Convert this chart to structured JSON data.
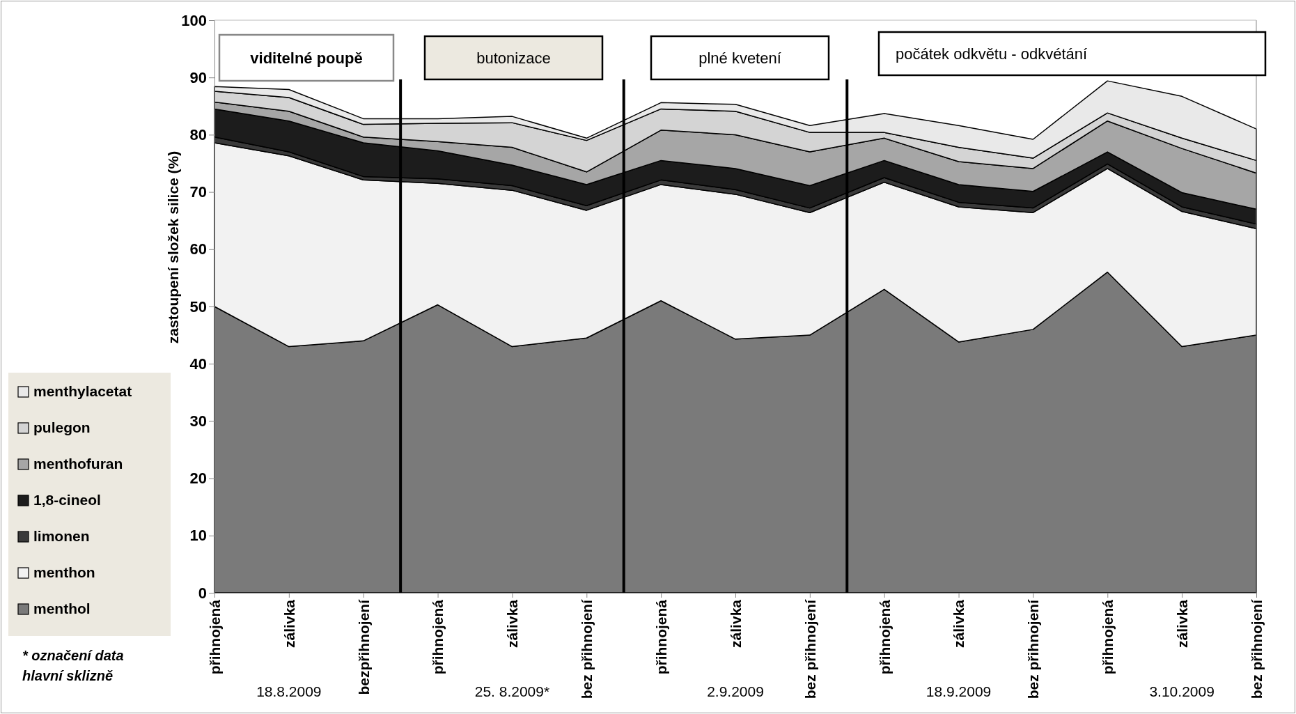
{
  "chart_data": {
    "type": "area",
    "stacked": true,
    "ylabel": "zastoupení složek silice (%)",
    "categories": [
      "přihnojená",
      "zálivka",
      "bezpřihnojení",
      "přihnojená",
      "zálivka",
      "bez přihnojení",
      "přihnojená",
      "zálivka",
      "bez přihnojení",
      "přihnojená",
      "zálivka",
      "bez přihnojení",
      "přihnojená",
      "zálivka",
      "bez přihnojení"
    ],
    "series": [
      {
        "name": "menthol",
        "color": "#7a7a7a",
        "values": [
          50,
          43,
          44,
          50.3,
          43,
          44.5,
          51,
          44.3,
          45,
          53,
          43.8,
          46,
          56,
          43,
          45
        ]
      },
      {
        "name": "menthon",
        "color": "#f2f2f2",
        "values": [
          28.6,
          33.3,
          28.1,
          21.2,
          27.3,
          22.3,
          20.3,
          25.3,
          21.4,
          18.7,
          23.6,
          20.4,
          18.1,
          23.6,
          18.6
        ]
      },
      {
        "name": "limonen",
        "color": "#3a3a3a",
        "values": [
          1.0,
          0.7,
          0.6,
          0.8,
          0.8,
          0.8,
          0.8,
          0.8,
          0.8,
          0.8,
          0.8,
          0.8,
          0.8,
          0.8,
          0.8
        ]
      },
      {
        "name": "1,8-cineol",
        "color": "#1c1c1c",
        "values": [
          4.9,
          5.4,
          5.9,
          4.9,
          3.6,
          3.7,
          3.4,
          3.7,
          3.9,
          3.0,
          3.1,
          2.9,
          2.1,
          2.5,
          2.6
        ]
      },
      {
        "name": "menthofuran",
        "color": "#a6a6a6",
        "values": [
          1.2,
          1.7,
          1.0,
          1.6,
          3.1,
          2.2,
          5.3,
          5.9,
          5.9,
          3.9,
          4.0,
          4.0,
          5.4,
          7.7,
          6.3
        ]
      },
      {
        "name": "pulegon",
        "color": "#d4d4d4",
        "values": [
          1.9,
          2.4,
          2.2,
          3.2,
          4.3,
          5.5,
          3.7,
          4.1,
          3.4,
          1.0,
          2.5,
          1.8,
          1.4,
          1.8,
          2.2
        ]
      },
      {
        "name": "menthylacetat",
        "color": "#e9e9e9",
        "values": [
          0.8,
          1.4,
          1.0,
          0.8,
          1.1,
          0.4,
          1.1,
          1.2,
          1.2,
          3.3,
          3.8,
          3.3,
          5.6,
          7.3,
          5.5
        ]
      }
    ],
    "ylim": [
      0,
      100
    ],
    "yticks": [
      0,
      10,
      20,
      30,
      40,
      50,
      60,
      70,
      80,
      90,
      100
    ],
    "legend": "bottom left",
    "annotations": [
      "viditelné poupě",
      "butonizace",
      "plné kvetení",
      "počátek odkvětu - odkvétání",
      "18.8.2009",
      "25. 8.2009*",
      "2.9.2009",
      "18.9.2009",
      "3.10.2009",
      "* označení data hlavní sklizně"
    ]
  }
}
